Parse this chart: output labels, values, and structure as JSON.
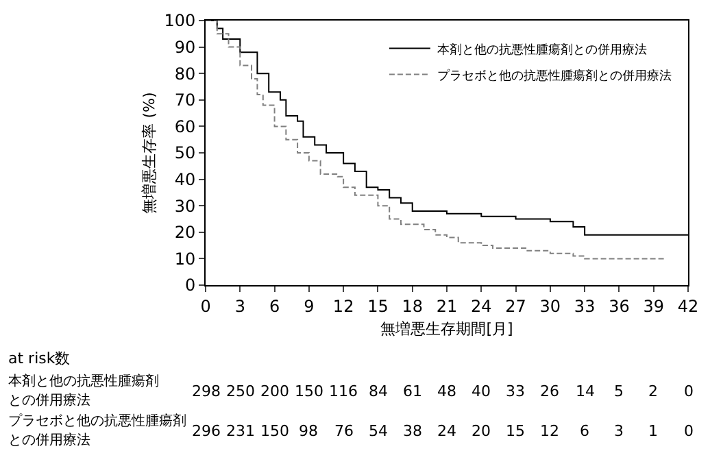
{
  "chart_data": {
    "type": "step",
    "xlabel": "無増悪生存期間[月]",
    "ylabel": "無増悪生存率 (%)",
    "xlim": [
      0,
      42
    ],
    "xticks": [
      0,
      3,
      6,
      9,
      12,
      15,
      18,
      21,
      24,
      27,
      30,
      33,
      36,
      39,
      42
    ],
    "ylim": [
      0,
      100
    ],
    "yticks": [
      0,
      10,
      20,
      30,
      40,
      50,
      60,
      70,
      80,
      90,
      100
    ],
    "legend": "top right",
    "marker": "none",
    "series": [
      {
        "name": "本剤と他の抗悪性腫瘍剤との併用療法",
        "color": "#000000",
        "line_style": "solid",
        "x": [
          0,
          1,
          1.5,
          3,
          4.5,
          5.5,
          6.5,
          7,
          8,
          8.5,
          9.5,
          10.5,
          12,
          13,
          14,
          15,
          16,
          17,
          18,
          21,
          24,
          27,
          30,
          32,
          33,
          42
        ],
        "values": [
          100,
          97,
          93,
          88,
          80,
          73,
          70,
          64,
          62,
          56,
          53,
          50,
          46,
          43,
          37,
          36,
          33,
          31,
          28,
          27,
          26,
          25,
          24,
          22,
          19,
          19
        ]
      },
      {
        "name": "プラセボと他の抗悪性腫瘍剤との併用療法",
        "color": "#808080",
        "line_style": "dashed",
        "x": [
          0,
          1,
          2,
          3,
          4,
          4.5,
          5,
          6,
          7,
          8,
          9,
          10,
          11.5,
          12,
          13,
          15,
          16,
          17,
          19,
          20,
          21,
          22,
          24,
          25,
          28,
          30,
          32,
          33,
          40
        ],
        "values": [
          100,
          95,
          90,
          83,
          78,
          72,
          68,
          60,
          55,
          50,
          47,
          42,
          41,
          37,
          34,
          30,
          25,
          23,
          21,
          19,
          18,
          16,
          15,
          14,
          13,
          12,
          11,
          10,
          10
        ]
      }
    ],
    "annotations": [
      "at risk数",
      "本剤と他の抗悪性腫瘍剤",
      "との併用療法",
      "298",
      "250",
      "200",
      "150",
      "116",
      "84",
      "61",
      "48",
      "40",
      "33",
      "26",
      "14",
      "5",
      "2",
      "0",
      "プラセボと他の抗悪性腫瘍剤",
      "との併用療法",
      "296",
      "231",
      "150",
      "98",
      "76",
      "54",
      "38",
      "24",
      "20",
      "15",
      "12",
      "6",
      "3",
      "1",
      "0"
    ]
  }
}
